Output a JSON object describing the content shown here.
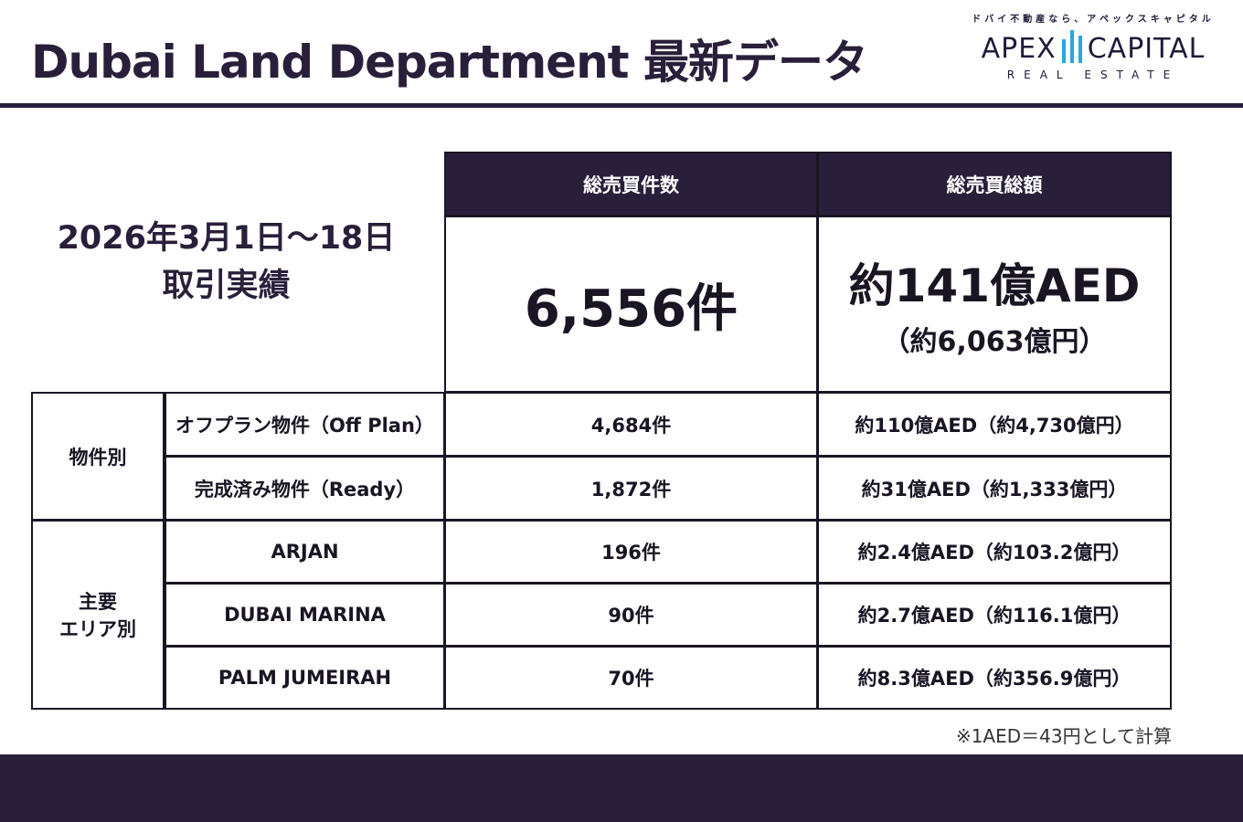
{
  "header": {
    "title": "Dubai Land Department 最新データ"
  },
  "logo": {
    "tagline": "ドバイ不動産なら、アペックスキャピタル",
    "name_left": "APEX",
    "name_right": "CAPITAL",
    "sub": "REAL ESTATE",
    "accent": "#2aa6e0"
  },
  "period": {
    "line1": "2026年3月1日〜18日",
    "line2": "取引実績"
  },
  "table": {
    "headers": [
      "総売買件数",
      "総売買総額"
    ],
    "total": {
      "count": "6,556件",
      "amount": "約141億AED",
      "amount_jpy": "（約6,063億円）"
    },
    "groups": [
      {
        "label": "物件別",
        "rows": [
          {
            "name": "オフプラン物件（Off Plan）",
            "count": "4,684件",
            "amount": "約110億AED（約4,730億円）"
          },
          {
            "name": "完成済み物件（Ready）",
            "count": "1,872件",
            "amount": "約31億AED（約1,333億円）"
          }
        ]
      },
      {
        "label1": "主要",
        "label2": "エリア別",
        "rows": [
          {
            "name": "ARJAN",
            "count": "196件",
            "amount": "約2.4億AED（約103.2億円）"
          },
          {
            "name": "DUBAI MARINA",
            "count": "90件",
            "amount": "約2.7億AED（約116.1億円）"
          },
          {
            "name": "PALM JUMEIRAH",
            "count": "70件",
            "amount": "約8.3億AED（約356.9億円）"
          }
        ]
      }
    ]
  },
  "note": "※1AED＝43円として計算",
  "colors": {
    "primary": "#2a1f3a"
  }
}
